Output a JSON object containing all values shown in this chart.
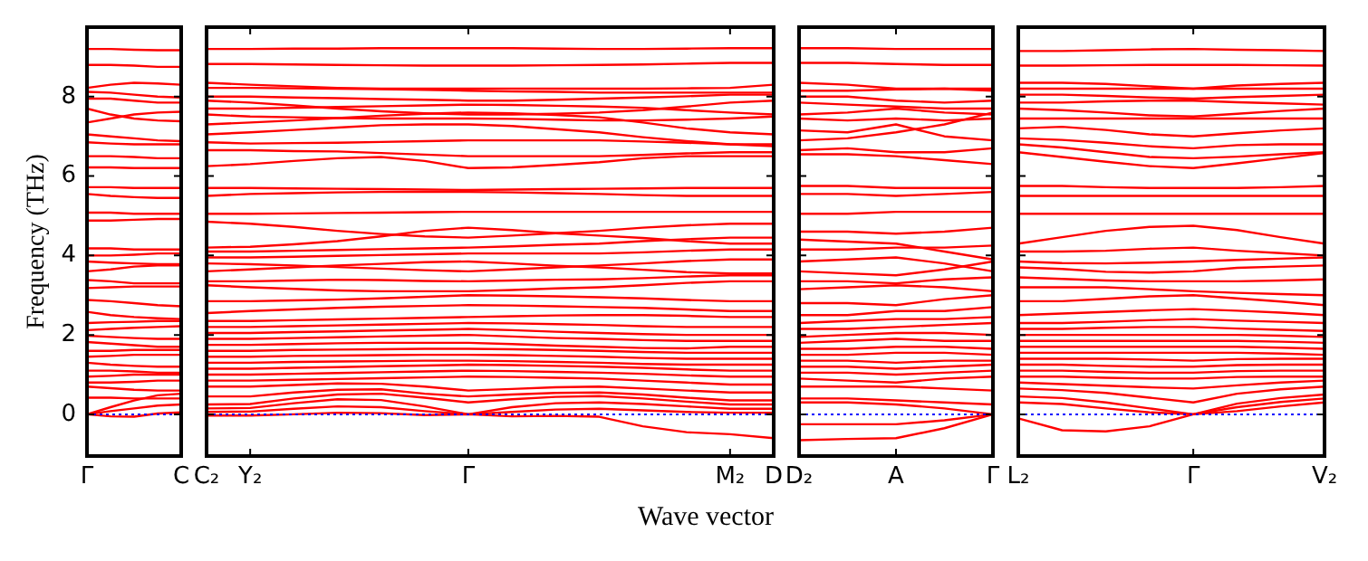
{
  "chart_data": [
    {
      "type": "line",
      "ylabel": "Frequency (THz)",
      "color": "#ff0000",
      "marker": "none",
      "ylim": [
        -1.05,
        9.75
      ],
      "yticks": [
        0,
        2,
        4,
        6,
        8
      ],
      "categories": [
        "Γ",
        null,
        null,
        null,
        "C"
      ],
      "ref_lines": [
        {
          "axis": "y",
          "value": 0,
          "color": "#0000ff",
          "line_style": "dotted"
        }
      ],
      "series": [
        {
          "values": [
            9.2,
            9.2,
            9.18,
            9.17,
            9.17
          ]
        },
        {
          "values": [
            8.8,
            8.8,
            8.78,
            8.75,
            8.75
          ]
        },
        {
          "values": [
            8.22,
            8.3,
            8.35,
            8.33,
            8.3
          ]
        },
        {
          "values": [
            8.12,
            8.1,
            8.05,
            8.0,
            7.98
          ]
        },
        {
          "values": [
            7.95,
            7.95,
            7.9,
            7.85,
            7.85
          ]
        },
        {
          "values": [
            7.7,
            7.55,
            7.45,
            7.4,
            7.38
          ]
        },
        {
          "values": [
            7.35,
            7.45,
            7.55,
            7.6,
            7.62
          ]
        },
        {
          "values": [
            7.05,
            7.0,
            6.95,
            6.9,
            6.88
          ]
        },
        {
          "values": [
            6.85,
            6.82,
            6.8,
            6.8,
            6.8
          ]
        },
        {
          "values": [
            6.5,
            6.5,
            6.48,
            6.45,
            6.45
          ]
        },
        {
          "values": [
            6.22,
            6.22,
            6.2,
            6.2,
            6.2
          ]
        },
        {
          "values": [
            5.72,
            5.72,
            5.7,
            5.7,
            5.7
          ]
        },
        {
          "values": [
            5.55,
            5.5,
            5.47,
            5.45,
            5.45
          ]
        },
        {
          "values": [
            5.08,
            5.08,
            5.05,
            5.05,
            5.05
          ]
        },
        {
          "values": [
            4.88,
            4.88,
            4.9,
            4.92,
            4.92
          ]
        },
        {
          "values": [
            4.18,
            4.18,
            4.15,
            4.15,
            4.15
          ]
        },
        {
          "values": [
            4.0,
            4.0,
            4.02,
            4.05,
            4.05
          ]
        },
        {
          "values": [
            3.85,
            3.82,
            3.8,
            3.78,
            3.78
          ]
        },
        {
          "values": [
            3.6,
            3.65,
            3.72,
            3.75,
            3.75
          ]
        },
        {
          "values": [
            3.38,
            3.35,
            3.3,
            3.3,
            3.3
          ]
        },
        {
          "values": [
            3.18,
            3.2,
            3.22,
            3.22,
            3.22
          ]
        },
        {
          "values": [
            2.88,
            2.85,
            2.8,
            2.75,
            2.72
          ]
        },
        {
          "values": [
            2.58,
            2.5,
            2.45,
            2.42,
            2.4
          ]
        },
        {
          "values": [
            2.3,
            2.32,
            2.33,
            2.35,
            2.35
          ]
        },
        {
          "values": [
            2.12,
            2.15,
            2.18,
            2.2,
            2.22
          ]
        },
        {
          "values": [
            1.98,
            1.95,
            1.92,
            1.9,
            1.9
          ]
        },
        {
          "values": [
            1.82,
            1.78,
            1.74,
            1.7,
            1.7
          ]
        },
        {
          "values": [
            1.6,
            1.6,
            1.62,
            1.62,
            1.62
          ]
        },
        {
          "values": [
            1.45,
            1.47,
            1.5,
            1.5,
            1.5
          ]
        },
        {
          "values": [
            1.3,
            1.25,
            1.22,
            1.2,
            1.2
          ]
        },
        {
          "values": [
            1.1,
            1.1,
            1.08,
            1.05,
            1.05
          ]
        },
        {
          "values": [
            0.95,
            0.97,
            1.0,
            1.0,
            1.0
          ]
        },
        {
          "values": [
            0.8,
            0.8,
            0.82,
            0.85,
            0.85
          ]
        },
        {
          "values": [
            0.7,
            0.66,
            0.62,
            0.6,
            0.6
          ]
        },
        {
          "values": [
            0.42,
            0.42,
            0.4,
            0.4,
            0.4
          ]
        },
        {
          "values": [
            0,
            0.18,
            0.35,
            0.48,
            0.52
          ]
        },
        {
          "values": [
            0,
            0.08,
            0.15,
            0.22,
            0.25
          ]
        },
        {
          "values": [
            0,
            -0.05,
            -0.06,
            0.02,
            0.05
          ]
        }
      ]
    },
    {
      "type": "line",
      "xlabel": "Wave vector",
      "color": "#ff0000",
      "marker": "none",
      "tick_labels": "x",
      "ylim": [
        -1.05,
        9.75
      ],
      "yticks": [
        0,
        2,
        4,
        6,
        8
      ],
      "categories": [
        "C₂",
        "Y₂",
        null,
        null,
        null,
        null,
        "Γ",
        null,
        null,
        null,
        null,
        null,
        "M₂",
        "D"
      ],
      "ref_lines": [
        {
          "axis": "y",
          "value": 0,
          "color": "#0000ff",
          "line_style": "dotted"
        }
      ],
      "series": [
        {
          "values": [
            9.2,
            9.2,
            9.21,
            9.21,
            9.22,
            9.22,
            9.22,
            9.22,
            9.21,
            9.2,
            9.2,
            9.21,
            9.22,
            9.22
          ]
        },
        {
          "values": [
            8.82,
            8.82,
            8.81,
            8.8,
            8.79,
            8.78,
            8.78,
            8.78,
            8.79,
            8.8,
            8.81,
            8.83,
            8.85,
            8.85
          ]
        },
        {
          "values": [
            8.35,
            8.3,
            8.26,
            8.22,
            8.2,
            8.2,
            8.2,
            8.2,
            8.2,
            8.2,
            8.2,
            8.21,
            8.22,
            8.3
          ]
        },
        {
          "values": [
            8.22,
            8.22,
            8.21,
            8.2,
            8.19,
            8.17,
            8.15,
            8.13,
            8.12,
            8.1,
            8.1,
            8.1,
            8.1,
            8.1
          ]
        },
        {
          "values": [
            8.0,
            8.0,
            7.98,
            7.96,
            7.94,
            7.92,
            7.9,
            7.9,
            7.92,
            7.95,
            7.98,
            8.01,
            8.05,
            8.05
          ]
        },
        {
          "values": [
            7.9,
            7.85,
            7.78,
            7.7,
            7.63,
            7.58,
            7.55,
            7.55,
            7.57,
            7.6,
            7.66,
            7.75,
            7.85,
            7.9
          ]
        },
        {
          "values": [
            7.7,
            7.7,
            7.72,
            7.74,
            7.76,
            7.78,
            7.8,
            7.79,
            7.77,
            7.75,
            7.72,
            7.66,
            7.6,
            7.55
          ]
        },
        {
          "values": [
            7.55,
            7.5,
            7.48,
            7.46,
            7.45,
            7.45,
            7.45,
            7.44,
            7.42,
            7.4,
            7.4,
            7.42,
            7.45,
            7.5
          ]
        },
        {
          "values": [
            7.3,
            7.35,
            7.4,
            7.46,
            7.52,
            7.57,
            7.6,
            7.58,
            7.54,
            7.48,
            7.35,
            7.2,
            7.1,
            7.05
          ]
        },
        {
          "values": [
            7.05,
            7.1,
            7.16,
            7.22,
            7.28,
            7.3,
            7.3,
            7.26,
            7.18,
            7.1,
            6.98,
            6.88,
            6.8,
            6.75
          ]
        },
        {
          "values": [
            6.85,
            6.82,
            6.83,
            6.84,
            6.86,
            6.88,
            6.9,
            6.9,
            6.9,
            6.9,
            6.87,
            6.84,
            6.8,
            6.8
          ]
        },
        {
          "values": [
            6.65,
            6.65,
            6.63,
            6.62,
            6.58,
            6.54,
            6.5,
            6.5,
            6.5,
            6.5,
            6.53,
            6.57,
            6.6,
            6.6
          ]
        },
        {
          "values": [
            6.25,
            6.3,
            6.38,
            6.45,
            6.48,
            6.38,
            6.2,
            6.22,
            6.28,
            6.35,
            6.45,
            6.5,
            6.5,
            6.5
          ]
        },
        {
          "values": [
            5.7,
            5.7,
            5.69,
            5.68,
            5.67,
            5.66,
            5.65,
            5.66,
            5.67,
            5.68,
            5.69,
            5.7,
            5.7,
            5.7
          ]
        },
        {
          "values": [
            5.5,
            5.55,
            5.57,
            5.59,
            5.6,
            5.6,
            5.6,
            5.59,
            5.57,
            5.55,
            5.52,
            5.5,
            5.5,
            5.5
          ]
        },
        {
          "values": [
            5.05,
            5.05,
            5.06,
            5.07,
            5.08,
            5.09,
            5.1,
            5.1,
            5.1,
            5.1,
            5.1,
            5.1,
            5.1,
            5.1
          ]
        },
        {
          "values": [
            4.85,
            4.8,
            4.72,
            4.62,
            4.54,
            4.48,
            4.45,
            4.5,
            4.56,
            4.62,
            4.7,
            4.76,
            4.8,
            4.8
          ]
        },
        {
          "values": [
            4.2,
            4.22,
            4.28,
            4.36,
            4.48,
            4.62,
            4.7,
            4.64,
            4.56,
            4.5,
            4.44,
            4.36,
            4.3,
            4.3
          ]
        },
        {
          "values": [
            4.1,
            4.1,
            4.12,
            4.14,
            4.16,
            4.18,
            4.2,
            4.23,
            4.27,
            4.3,
            4.36,
            4.41,
            4.45,
            4.45
          ]
        },
        {
          "values": [
            3.95,
            3.95,
            3.97,
            3.99,
            4.01,
            4.03,
            4.05,
            4.05,
            4.05,
            4.05,
            4.08,
            4.12,
            4.15,
            4.15
          ]
        },
        {
          "values": [
            3.8,
            3.78,
            3.75,
            3.71,
            3.67,
            3.63,
            3.6,
            3.65,
            3.7,
            3.75,
            3.8,
            3.86,
            3.9,
            3.9
          ]
        },
        {
          "values": [
            3.6,
            3.65,
            3.7,
            3.75,
            3.79,
            3.83,
            3.85,
            3.8,
            3.74,
            3.7,
            3.64,
            3.58,
            3.55,
            3.55
          ]
        },
        {
          "values": [
            3.35,
            3.35,
            3.37,
            3.39,
            3.38,
            3.36,
            3.35,
            3.37,
            3.39,
            3.4,
            3.43,
            3.47,
            3.5,
            3.5
          ]
        },
        {
          "values": [
            3.25,
            3.2,
            3.16,
            3.12,
            3.1,
            3.1,
            3.1,
            3.13,
            3.17,
            3.2,
            3.25,
            3.31,
            3.35,
            3.35
          ]
        },
        {
          "values": [
            2.85,
            2.85,
            2.87,
            2.89,
            2.92,
            2.96,
            3.0,
            2.99,
            2.97,
            2.95,
            2.92,
            2.88,
            2.85,
            2.85
          ]
        },
        {
          "values": [
            2.55,
            2.6,
            2.64,
            2.68,
            2.71,
            2.73,
            2.75,
            2.74,
            2.72,
            2.7,
            2.68,
            2.64,
            2.6,
            2.6
          ]
        },
        {
          "values": [
            2.35,
            2.35,
            2.37,
            2.39,
            2.41,
            2.43,
            2.45,
            2.47,
            2.49,
            2.5,
            2.5,
            2.48,
            2.45,
            2.45
          ]
        },
        {
          "values": [
            2.2,
            2.2,
            2.22,
            2.24,
            2.26,
            2.28,
            2.3,
            2.29,
            2.27,
            2.25,
            2.22,
            2.2,
            2.2,
            2.2
          ]
        },
        {
          "values": [
            2.05,
            2.05,
            2.07,
            2.09,
            2.11,
            2.13,
            2.15,
            2.12,
            2.08,
            2.05,
            2.02,
            2.0,
            2.0,
            2.0
          ]
        },
        {
          "values": [
            1.9,
            1.9,
            1.92,
            1.94,
            1.96,
            1.98,
            2.0,
            1.96,
            1.92,
            1.9,
            1.87,
            1.85,
            1.85,
            1.85
          ]
        },
        {
          "values": [
            1.75,
            1.75,
            1.77,
            1.79,
            1.8,
            1.8,
            1.8,
            1.77,
            1.73,
            1.7,
            1.67,
            1.66,
            1.7,
            1.7
          ]
        },
        {
          "values": [
            1.6,
            1.6,
            1.62,
            1.63,
            1.64,
            1.65,
            1.65,
            1.64,
            1.62,
            1.6,
            1.57,
            1.55,
            1.55,
            1.55
          ]
        },
        {
          "values": [
            1.45,
            1.45,
            1.47,
            1.48,
            1.49,
            1.5,
            1.5,
            1.49,
            1.47,
            1.45,
            1.42,
            1.4,
            1.4,
            1.4
          ]
        },
        {
          "values": [
            1.3,
            1.3,
            1.32,
            1.33,
            1.34,
            1.35,
            1.35,
            1.34,
            1.32,
            1.3,
            1.27,
            1.25,
            1.25,
            1.25
          ]
        },
        {
          "values": [
            1.15,
            1.15,
            1.17,
            1.19,
            1.21,
            1.23,
            1.25,
            1.24,
            1.22,
            1.2,
            1.17,
            1.13,
            1.1,
            1.1
          ]
        },
        {
          "values": [
            1.0,
            1.0,
            1.02,
            1.04,
            1.06,
            1.08,
            1.1,
            1.09,
            1.07,
            1.05,
            1.02,
            0.98,
            0.95,
            0.95
          ]
        },
        {
          "values": [
            0.85,
            0.85,
            0.87,
            0.89,
            0.91,
            0.93,
            0.95,
            0.94,
            0.92,
            0.9,
            0.85,
            0.8,
            0.75,
            0.75
          ]
        },
        {
          "values": [
            0.7,
            0.7,
            0.74,
            0.78,
            0.77,
            0.7,
            0.6,
            0.64,
            0.68,
            0.7,
            0.65,
            0.6,
            0.55,
            0.55
          ]
        },
        {
          "values": [
            0.45,
            0.45,
            0.55,
            0.62,
            0.63,
            0.52,
            0.45,
            0.5,
            0.54,
            0.55,
            0.5,
            0.42,
            0.35,
            0.35
          ]
        },
        {
          "values": [
            0.25,
            0.26,
            0.4,
            0.5,
            0.52,
            0.42,
            0.3,
            0.38,
            0.44,
            0.46,
            0.4,
            0.32,
            0.25,
            0.25
          ]
        },
        {
          "values": [
            0.15,
            0.16,
            0.28,
            0.38,
            0.36,
            0.2,
            0,
            0.18,
            0.28,
            0.3,
            0.26,
            0.2,
            0.14,
            0.14
          ]
        },
        {
          "values": [
            0.06,
            0.07,
            0.14,
            0.2,
            0.18,
            0.08,
            0,
            0.06,
            0.12,
            0.14,
            0.1,
            0.06,
            0.04,
            0.04
          ]
        },
        {
          "values": [
            -0.03,
            -0.03,
            0,
            0.04,
            0.03,
            -0.02,
            0,
            -0.05,
            -0.04,
            -0.06,
            -0.3,
            -0.45,
            -0.5,
            -0.6
          ]
        }
      ]
    },
    {
      "type": "line",
      "color": "#ff0000",
      "marker": "none",
      "tick_labels": "x",
      "ylim": [
        -1.05,
        9.75
      ],
      "yticks": [
        0,
        2,
        4,
        6,
        8
      ],
      "categories": [
        "D₂",
        null,
        "A",
        null,
        "Γ"
      ],
      "ref_lines": [
        {
          "axis": "y",
          "value": 0,
          "color": "#0000ff",
          "line_style": "dotted"
        }
      ],
      "series": [
        {
          "values": [
            9.22,
            9.22,
            9.2,
            9.2,
            9.2
          ]
        },
        {
          "values": [
            8.85,
            8.85,
            8.82,
            8.8,
            8.8
          ]
        },
        {
          "values": [
            8.35,
            8.3,
            8.2,
            8.2,
            8.2
          ]
        },
        {
          "values": [
            8.15,
            8.15,
            8.18,
            8.2,
            8.15
          ]
        },
        {
          "values": [
            8.0,
            8.0,
            7.9,
            7.85,
            7.9
          ]
        },
        {
          "values": [
            7.85,
            7.8,
            7.75,
            7.7,
            7.7
          ]
        },
        {
          "values": [
            7.55,
            7.6,
            7.7,
            7.6,
            7.55
          ]
        },
        {
          "values": [
            7.45,
            7.4,
            7.45,
            7.4,
            7.45
          ]
        },
        {
          "values": [
            7.15,
            7.1,
            7.3,
            7.0,
            6.9
          ]
        },
        {
          "values": [
            6.9,
            6.95,
            7.1,
            7.3,
            7.6
          ]
        },
        {
          "values": [
            6.65,
            6.7,
            6.6,
            6.6,
            6.7
          ]
        },
        {
          "values": [
            6.55,
            6.55,
            6.5,
            6.4,
            6.3
          ]
        },
        {
          "values": [
            5.75,
            5.75,
            5.7,
            5.7,
            5.7
          ]
        },
        {
          "values": [
            5.55,
            5.55,
            5.5,
            5.55,
            5.6
          ]
        },
        {
          "values": [
            5.05,
            5.05,
            5.1,
            5.1,
            5.1
          ]
        },
        {
          "values": [
            4.6,
            4.6,
            4.55,
            4.6,
            4.7
          ]
        },
        {
          "values": [
            4.4,
            4.35,
            4.3,
            4.1,
            3.9
          ]
        },
        {
          "values": [
            4.15,
            4.15,
            4.2,
            4.2,
            4.25
          ]
        },
        {
          "values": [
            3.85,
            3.9,
            3.95,
            3.8,
            3.6
          ]
        },
        {
          "values": [
            3.6,
            3.55,
            3.5,
            3.65,
            3.85
          ]
        },
        {
          "values": [
            3.35,
            3.35,
            3.3,
            3.4,
            3.45
          ]
        },
        {
          "values": [
            3.15,
            3.2,
            3.25,
            3.2,
            3.1
          ]
        },
        {
          "values": [
            2.8,
            2.8,
            2.75,
            2.9,
            3.0
          ]
        },
        {
          "values": [
            2.5,
            2.5,
            2.6,
            2.6,
            2.7
          ]
        },
        {
          "values": [
            2.3,
            2.35,
            2.4,
            2.4,
            2.45
          ]
        },
        {
          "values": [
            2.15,
            2.15,
            2.2,
            2.25,
            2.3
          ]
        },
        {
          "values": [
            1.95,
            2.0,
            2.05,
            2.05,
            2.0
          ]
        },
        {
          "values": [
            1.8,
            1.85,
            1.9,
            1.85,
            1.85
          ]
        },
        {
          "values": [
            1.65,
            1.65,
            1.7,
            1.7,
            1.65
          ]
        },
        {
          "values": [
            1.5,
            1.5,
            1.55,
            1.55,
            1.5
          ]
        },
        {
          "values": [
            1.35,
            1.35,
            1.3,
            1.35,
            1.35
          ]
        },
        {
          "values": [
            1.2,
            1.2,
            1.15,
            1.2,
            1.25
          ]
        },
        {
          "values": [
            1.05,
            1.05,
            1.0,
            1.05,
            1.1
          ]
        },
        {
          "values": [
            0.9,
            0.85,
            0.8,
            0.9,
            0.95
          ]
        },
        {
          "values": [
            0.7,
            0.7,
            0.7,
            0.65,
            0.6
          ]
        },
        {
          "values": [
            0.4,
            0.4,
            0.35,
            0.3,
            0.25
          ]
        },
        {
          "values": [
            0.3,
            0.3,
            0.25,
            0.15,
            0
          ]
        },
        {
          "values": [
            -0.25,
            -0.25,
            -0.25,
            -0.15,
            0
          ]
        },
        {
          "values": [
            -0.65,
            -0.62,
            -0.6,
            -0.35,
            0
          ]
        }
      ]
    },
    {
      "type": "line",
      "color": "#ff0000",
      "marker": "none",
      "tick_labels": "x",
      "ylim": [
        -1.05,
        9.75
      ],
      "yticks": [
        0,
        2,
        4,
        6,
        8
      ],
      "categories": [
        "L₂",
        null,
        null,
        null,
        "Γ",
        null,
        null,
        "V₂"
      ],
      "ref_lines": [
        {
          "axis": "y",
          "value": 0,
          "color": "#0000ff",
          "line_style": "dotted"
        }
      ],
      "series": [
        {
          "values": [
            9.15,
            9.15,
            9.17,
            9.19,
            9.2,
            9.18,
            9.17,
            9.15
          ]
        },
        {
          "values": [
            8.78,
            8.78,
            8.79,
            8.8,
            8.8,
            8.8,
            8.79,
            8.78
          ]
        },
        {
          "values": [
            8.35,
            8.35,
            8.32,
            8.26,
            8.2,
            8.28,
            8.32,
            8.35
          ]
        },
        {
          "values": [
            8.2,
            8.2,
            8.2,
            8.2,
            8.2,
            8.2,
            8.2,
            8.2
          ]
        },
        {
          "values": [
            8.05,
            8.05,
            8.02,
            7.98,
            7.95,
            7.99,
            8.02,
            8.05
          ]
        },
        {
          "values": [
            7.85,
            7.85,
            7.88,
            7.9,
            7.9,
            7.86,
            7.83,
            7.8
          ]
        },
        {
          "values": [
            7.7,
            7.66,
            7.6,
            7.53,
            7.5,
            7.57,
            7.64,
            7.7
          ]
        },
        {
          "values": [
            7.45,
            7.45,
            7.45,
            7.45,
            7.45,
            7.45,
            7.45,
            7.45
          ]
        },
        {
          "values": [
            7.2,
            7.24,
            7.16,
            7.05,
            7.0,
            7.08,
            7.15,
            7.2
          ]
        },
        {
          "values": [
            6.95,
            6.91,
            6.84,
            6.75,
            6.7,
            6.78,
            6.8,
            6.8
          ]
        },
        {
          "values": [
            6.8,
            6.72,
            6.6,
            6.48,
            6.45,
            6.49,
            6.55,
            6.6
          ]
        },
        {
          "values": [
            6.6,
            6.48,
            6.36,
            6.25,
            6.2,
            6.32,
            6.45,
            6.58
          ]
        },
        {
          "values": [
            5.75,
            5.75,
            5.72,
            5.7,
            5.7,
            5.7,
            5.72,
            5.75
          ]
        },
        {
          "values": [
            5.5,
            5.5,
            5.5,
            5.5,
            5.5,
            5.5,
            5.5,
            5.5
          ]
        },
        {
          "values": [
            5.05,
            5.05,
            5.05,
            5.05,
            5.05,
            5.05,
            5.05,
            5.05
          ]
        },
        {
          "values": [
            4.3,
            4.46,
            4.62,
            4.72,
            4.75,
            4.64,
            4.46,
            4.3
          ]
        },
        {
          "values": [
            4.1,
            4.1,
            4.12,
            4.17,
            4.2,
            4.12,
            4.06,
            4.0
          ]
        },
        {
          "values": [
            3.85,
            3.81,
            3.8,
            3.82,
            3.85,
            3.89,
            3.92,
            3.95
          ]
        },
        {
          "values": [
            3.7,
            3.66,
            3.59,
            3.57,
            3.6,
            3.69,
            3.72,
            3.75
          ]
        },
        {
          "values": [
            3.45,
            3.41,
            3.37,
            3.35,
            3.35,
            3.35,
            3.37,
            3.4
          ]
        },
        {
          "values": [
            3.2,
            3.2,
            3.2,
            3.15,
            3.1,
            3.06,
            3.03,
            3.0
          ]
        },
        {
          "values": [
            2.85,
            2.85,
            2.91,
            2.97,
            3.0,
            2.92,
            2.84,
            2.75
          ]
        },
        {
          "values": [
            2.5,
            2.54,
            2.58,
            2.62,
            2.65,
            2.61,
            2.56,
            2.5
          ]
        },
        {
          "values": [
            2.3,
            2.3,
            2.33,
            2.37,
            2.4,
            2.36,
            2.33,
            2.3
          ]
        },
        {
          "values": [
            2.15,
            2.15,
            2.18,
            2.2,
            2.2,
            2.16,
            2.13,
            2.1
          ]
        },
        {
          "values": [
            2.0,
            2.0,
            2.0,
            2.0,
            2.0,
            2.0,
            1.98,
            1.95
          ]
        },
        {
          "values": [
            1.85,
            1.85,
            1.85,
            1.85,
            1.85,
            1.85,
            1.83,
            1.8
          ]
        },
        {
          "values": [
            1.7,
            1.7,
            1.7,
            1.7,
            1.7,
            1.7,
            1.68,
            1.65
          ]
        },
        {
          "values": [
            1.55,
            1.55,
            1.55,
            1.55,
            1.55,
            1.55,
            1.53,
            1.5
          ]
        },
        {
          "values": [
            1.4,
            1.4,
            1.4,
            1.38,
            1.35,
            1.39,
            1.4,
            1.4
          ]
        },
        {
          "values": [
            1.25,
            1.25,
            1.22,
            1.2,
            1.2,
            1.24,
            1.25,
            1.25
          ]
        },
        {
          "values": [
            1.1,
            1.1,
            1.07,
            1.05,
            1.05,
            1.09,
            1.1,
            1.1
          ]
        },
        {
          "values": [
            0.95,
            0.95,
            0.92,
            0.9,
            0.9,
            0.94,
            0.95,
            0.95
          ]
        },
        {
          "values": [
            0.8,
            0.76,
            0.72,
            0.68,
            0.65,
            0.73,
            0.8,
            0.85
          ]
        },
        {
          "values": [
            0.65,
            0.61,
            0.54,
            0.42,
            0.3,
            0.52,
            0.63,
            0.7
          ]
        },
        {
          "values": [
            0.45,
            0.41,
            0.3,
            0.15,
            0,
            0.27,
            0.41,
            0.5
          ]
        },
        {
          "values": [
            0.3,
            0.26,
            0.15,
            0.05,
            0,
            0.18,
            0.31,
            0.4
          ]
        },
        {
          "values": [
            -0.1,
            -0.4,
            -0.43,
            -0.3,
            0,
            0.08,
            0.2,
            0.3
          ]
        }
      ]
    }
  ]
}
